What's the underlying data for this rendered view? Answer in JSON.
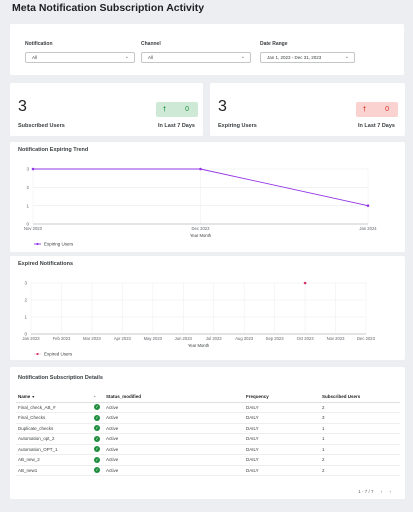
{
  "page": {
    "title": "Meta Notification Subscription Activity"
  },
  "filters": {
    "notification": {
      "label": "Notification",
      "value": "All"
    },
    "channel": {
      "label": "Channel",
      "value": "All"
    },
    "date_range": {
      "label": "Date Range",
      "value": "Jan 1, 2023 - Dec 31, 2023"
    }
  },
  "kpis": {
    "subscribed": {
      "value": "3",
      "label": "Subscribed Users",
      "delta": "0",
      "period": "In Last 7 Days",
      "color": "#1e8e3e"
    },
    "expiring": {
      "value": "3",
      "label": "Expiring Users",
      "delta": "0",
      "period": "In Last 7 Days",
      "color": "#d93025"
    }
  },
  "chart_data": [
    {
      "type": "line",
      "title": "Notification Expiring Trend",
      "xlabel": "Year Month",
      "ylabel": "",
      "categories": [
        "Nov 2023",
        "Dec 2023",
        "Jan 2024"
      ],
      "series": [
        {
          "name": "Expiring Users",
          "values": [
            3,
            3,
            1
          ],
          "color": "#9334e6"
        }
      ],
      "yticks": [
        "0",
        "1",
        "2",
        "3"
      ],
      "ylim": [
        0,
        3
      ],
      "grid": true,
      "legend": "bottom-left"
    },
    {
      "type": "scatter",
      "title": "Expired Notifications",
      "xlabel": "Year Month",
      "ylabel": "",
      "categories": [
        "Jan 2023",
        "Feb 2023",
        "Mar 2023",
        "Apr 2023",
        "May 2023",
        "Jun 2023",
        "Jul 2023",
        "Aug 2023",
        "Sep 2023",
        "Oct 2023",
        "Nov 2023",
        "Dec 2023"
      ],
      "series": [
        {
          "name": "Expired Users",
          "values": [
            null,
            null,
            null,
            null,
            null,
            null,
            null,
            null,
            null,
            3,
            null,
            null
          ],
          "color": "#d6336c"
        }
      ],
      "yticks": [
        "0",
        "1",
        "2",
        "3"
      ],
      "ylim": [
        0,
        3
      ],
      "grid": true,
      "legend": "bottom-left"
    }
  ],
  "table": {
    "title": "Notification Subscription Details",
    "columns": {
      "name": "Name",
      "sort": "▼",
      "dot": "-",
      "status": "Status_modified",
      "frequency": "Frequency",
      "subscribed": "Subscribed Users"
    },
    "rows": [
      {
        "name": "Final_check_AB_#",
        "status": "Active",
        "frequency": "DAILY",
        "subscribed": "2"
      },
      {
        "name": "Final_Checks",
        "status": "Active",
        "frequency": "DAILY",
        "subscribed": "3"
      },
      {
        "name": "Duplicate_checks",
        "status": "Active",
        "frequency": "DAILY",
        "subscribed": "1"
      },
      {
        "name": "Automation_opt_2",
        "status": "Active",
        "frequency": "DAILY",
        "subscribed": "1"
      },
      {
        "name": "Automation_OPT_1",
        "status": "Active",
        "frequency": "DAILY",
        "subscribed": "1"
      },
      {
        "name": "AB_new_2",
        "status": "Active",
        "frequency": "DAILY",
        "subscribed": "2"
      },
      {
        "name": "AB_new1",
        "status": "Active",
        "frequency": "DAILY",
        "subscribed": "2"
      }
    ],
    "pagination": "1 - 7 / 7"
  }
}
